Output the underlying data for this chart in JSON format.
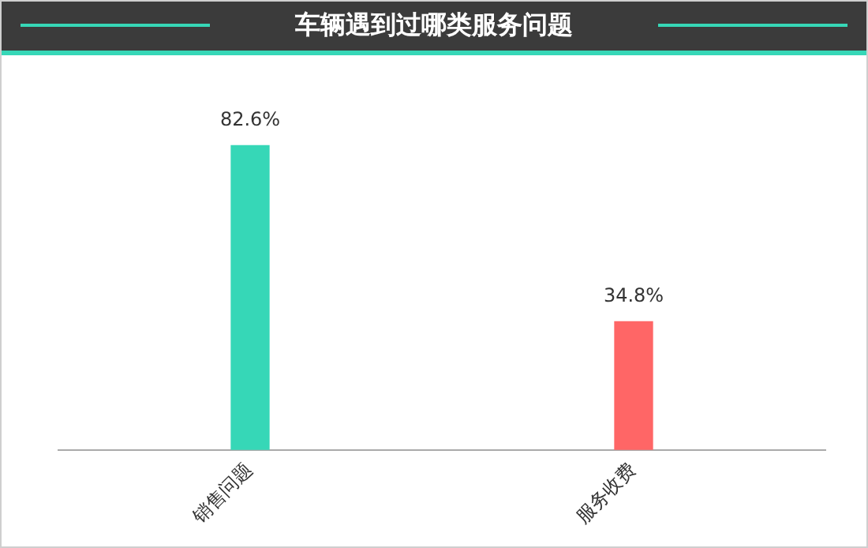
{
  "chart_data": {
    "type": "bar",
    "title": "车辆遇到过哪类服务问题",
    "categories": [
      "销售问题",
      "服务收费"
    ],
    "values": [
      82.6,
      34.8
    ],
    "colors": [
      "#36d7b7",
      "#ff6666"
    ],
    "tick_labels": "x",
    "data_labels": true,
    "value_labels": [
      "82.6%",
      "34.8%"
    ],
    "legend": false
  }
}
